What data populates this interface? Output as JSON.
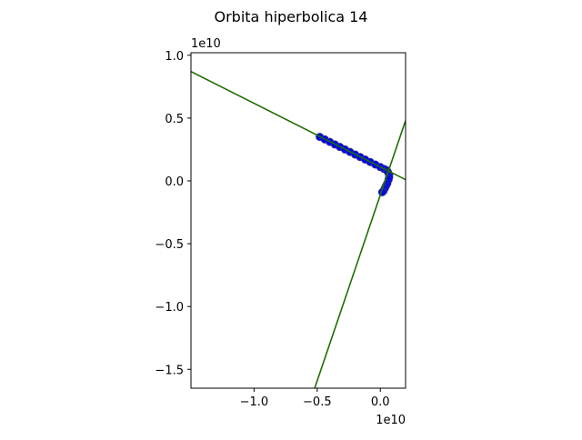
{
  "chart_data": {
    "type": "line",
    "title": "Orbita hiperbolica 14",
    "xlabel": "",
    "ylabel": "",
    "x_offset_text": "1e10",
    "y_offset_text": "1e10",
    "xlim": [
      -1.5,
      0.2
    ],
    "ylim": [
      -1.65,
      1.02
    ],
    "grid": false,
    "xticks": [
      {
        "value": -1.0,
        "label": "−1.0"
      },
      {
        "value": -0.5,
        "label": "−0.5"
      },
      {
        "value": 0.0,
        "label": "0.0"
      }
    ],
    "yticks": [
      {
        "value": 1.0,
        "label": "1.0"
      },
      {
        "value": 0.5,
        "label": "0.5"
      },
      {
        "value": 0.0,
        "label": "0.0"
      },
      {
        "value": -0.5,
        "label": "−0.5"
      },
      {
        "value": -1.0,
        "label": "−1.0"
      },
      {
        "value": -1.5,
        "label": "−1.5"
      }
    ],
    "series": [
      {
        "style": "markers",
        "color": "#0000ff",
        "edge_color": "#2a2a8c",
        "x": [
          -0.48,
          -0.44,
          -0.4,
          -0.36,
          -0.32,
          -0.28,
          -0.24,
          -0.2,
          -0.16,
          -0.12,
          -0.08,
          -0.04,
          0.0,
          0.03,
          0.05,
          0.06,
          0.07,
          0.07,
          0.065,
          0.055,
          0.045,
          0.035,
          0.025,
          0.015
        ],
        "y": [
          0.35,
          0.33,
          0.31,
          0.29,
          0.27,
          0.25,
          0.23,
          0.21,
          0.19,
          0.17,
          0.15,
          0.13,
          0.11,
          0.095,
          0.085,
          0.07,
          0.05,
          0.03,
          0.01,
          -0.02,
          -0.04,
          -0.06,
          -0.08,
          -0.09
        ]
      },
      {
        "style": "line",
        "color": "#1f6f00",
        "x": [
          -1.5,
          0.2
        ],
        "y": [
          0.87,
          0.01
        ]
      },
      {
        "style": "line",
        "color": "#1f6f00",
        "x": [
          -0.52,
          0.2
        ],
        "y": [
          -1.65,
          0.48
        ]
      }
    ]
  }
}
